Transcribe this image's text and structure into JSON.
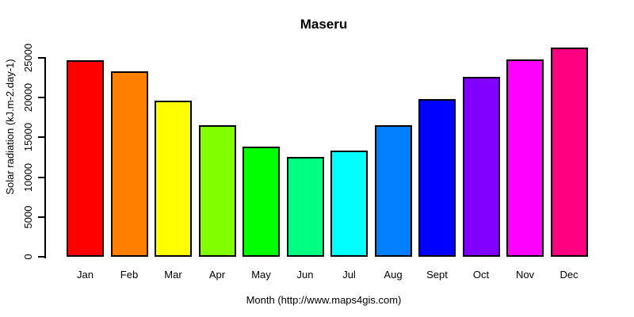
{
  "chart_data": {
    "type": "bar",
    "title": "Maseru",
    "xlabel": "Month (http://www.maps4gis.com)",
    "ylabel": "Solar radiation (kJ.m-2.day-1)",
    "categories": [
      "Jan",
      "Feb",
      "Mar",
      "Apr",
      "May",
      "Jun",
      "Jul",
      "Aug",
      "Sept",
      "Oct",
      "Nov",
      "Dec"
    ],
    "values": [
      24700,
      23300,
      19600,
      16500,
      13800,
      12500,
      13300,
      16500,
      19800,
      22600,
      24800,
      26300
    ],
    "bar_colors": [
      "#FF0000",
      "#FF8000",
      "#FFFF00",
      "#80FF00",
      "#00FF00",
      "#00FF80",
      "#00FFFF",
      "#0080FF",
      "#0000FF",
      "#8000FF",
      "#FF00FF",
      "#FF0080"
    ],
    "yticks": [
      0,
      5000,
      10000,
      15000,
      20000,
      25000
    ],
    "ylim": [
      0,
      26400
    ],
    "grid": "off",
    "legend": "none",
    "axis_color": "#000000",
    "text_color": "#000000",
    "background_color": "#FFFFFF"
  }
}
